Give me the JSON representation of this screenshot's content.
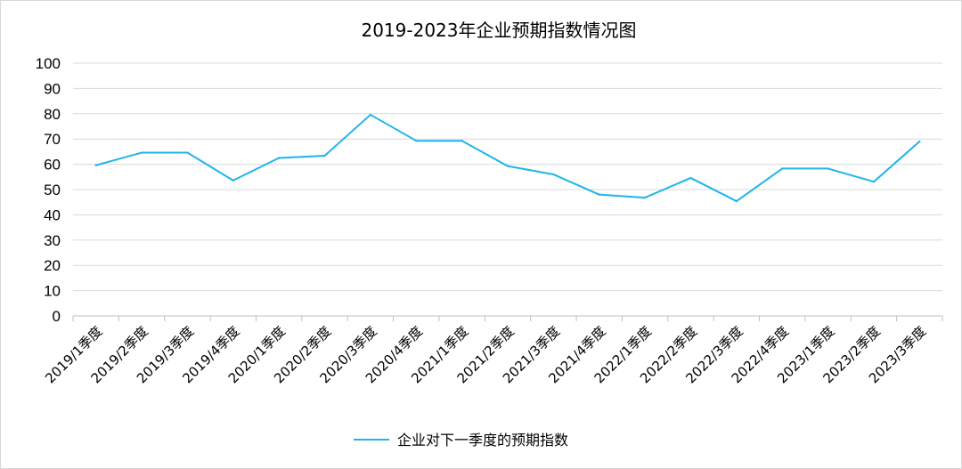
{
  "chart_data": {
    "type": "line",
    "title": "2019-2023年企业预期指数情况图",
    "categories": [
      "2019/1季度",
      "2019/2季度",
      "2019/3季度",
      "2019/4季度",
      "2020/1季度",
      "2020/2季度",
      "2020/3季度",
      "2020/4季度",
      "2021/1季度",
      "2021/2季度",
      "2021/3季度",
      "2021/4季度",
      "2022/1季度",
      "2022/2季度",
      "2022/3季度",
      "2022/4季度",
      "2023/1季度",
      "2023/2季度",
      "2023/3季度"
    ],
    "series": [
      {
        "name": "企业对下一季度的预期指数",
        "color": "#1fb5ea",
        "values": [
          59.6,
          64.6,
          64.6,
          53.6,
          62.5,
          63.4,
          79.6,
          69.3,
          69.3,
          59.3,
          56.0,
          48.0,
          46.8,
          54.6,
          45.4,
          58.3,
          58.3,
          53.1,
          69.0
        ]
      }
    ],
    "ylim": [
      0,
      100
    ],
    "yticks": [
      0,
      10,
      20,
      30,
      40,
      50,
      60,
      70,
      80,
      90,
      100
    ],
    "xlabel": "",
    "ylabel": "",
    "grid": true,
    "legend_position": "bottom"
  },
  "colors": {
    "line": "#1fb5ea",
    "grid": "#d9d9d9",
    "axis": "#bfbfbf"
  }
}
